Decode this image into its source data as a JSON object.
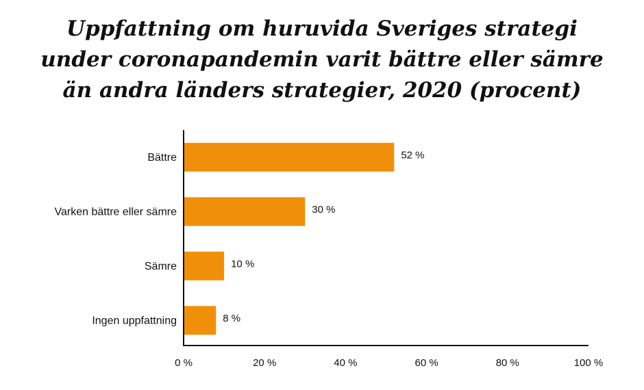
{
  "chart_data": {
    "type": "bar",
    "orientation": "horizontal",
    "title_lines": [
      "Uppfattning om huruvida Sveriges strategi",
      "under coronapandemin varit bättre eller sämre",
      "än andra länders strategier, 2020 (procent)"
    ],
    "categories": [
      "Bättre",
      "Varken bättre eller sämre",
      "Sämre",
      "Ingen uppfattning"
    ],
    "values": [
      52,
      30,
      10,
      8
    ],
    "value_labels": [
      "52 %",
      "30 %",
      "10 %",
      "8 %"
    ],
    "xlim": [
      0,
      100
    ],
    "xticks": [
      0,
      20,
      40,
      60,
      80,
      100
    ],
    "xtick_labels": [
      "0 %",
      "20 %",
      "40 %",
      "60 %",
      "80 %",
      "100 %"
    ],
    "xlabel": "",
    "ylabel": "",
    "grid": false,
    "bar_color": "#f0900a",
    "axis_color": "#111111"
  }
}
